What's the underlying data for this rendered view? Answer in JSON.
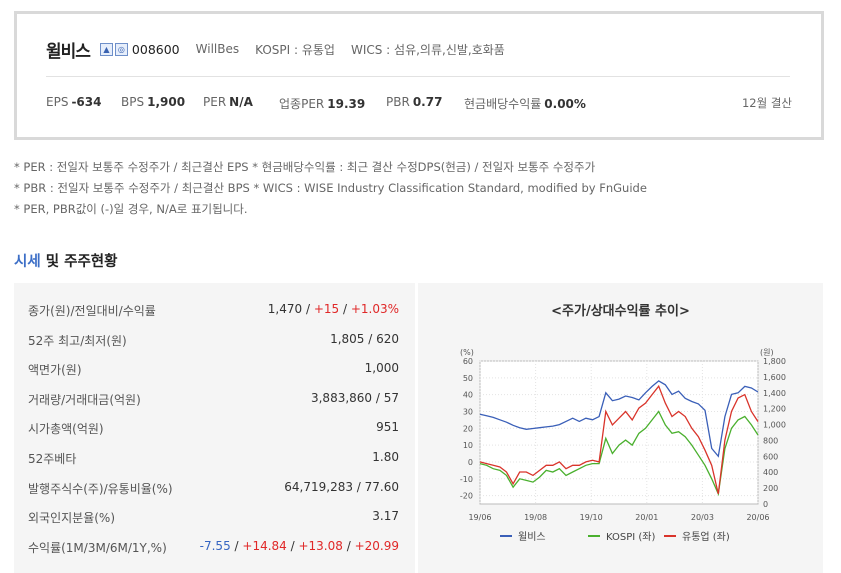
{
  "summary": {
    "company_name": "윌비스",
    "badge_1": "▲",
    "badge_2": "◎",
    "code": "008600",
    "english_name": "WillBes",
    "market": "KOSPI : 유통업",
    "wics": "WICS : 섬유,의류,신발,호화품",
    "metrics": [
      {
        "label": "EPS",
        "value": "-634"
      },
      {
        "label": "BPS",
        "value": "1,900"
      },
      {
        "label": "PER",
        "value": "N/A"
      },
      {
        "label": "업종PER",
        "value": "19.39"
      },
      {
        "label": "PBR",
        "value": "0.77"
      },
      {
        "label": "현금배당수익률",
        "value": "0.00%"
      }
    ],
    "fiscal": "12월 결산"
  },
  "notes": [
    "* PER : 전일자 보통주 수정주가 / 최근결산 EPS * 현금배당수익률 : 최근 결산 수정DPS(현금) / 전일자 보통주 수정주가",
    "* PBR : 전일자 보통주 수정주가 / 최근결산 BPS * WICS : WISE Industry Classification Standard, modified by FnGuide",
    "* PER, PBR값이 (-)일 경우, N/A로 표기됩니다."
  ],
  "section": {
    "title_accent": "시세",
    "title_rest": " 및 주주현황"
  },
  "table": [
    {
      "label": "종가(원)/전일대비/수익률",
      "value": "1,470",
      "parts": [
        "+15",
        "+1.03%"
      ],
      "colors": [
        "red",
        "red"
      ]
    },
    {
      "label": "52주 최고/최저(원)",
      "value": "1,805 / 620"
    },
    {
      "label": "액면가(원)",
      "value": "1,000"
    },
    {
      "label": "거래량/거래대금(억원)",
      "value": "3,883,860 / 57"
    },
    {
      "label": "시가총액(억원)",
      "value": "951"
    },
    {
      "label": "52주베타",
      "value": "1.80"
    },
    {
      "label": "발행주식수(주)/유통비율(%)",
      "value": "64,719,283 / 77.60"
    },
    {
      "label": "외국인지분율(%)",
      "value": "3.17"
    },
    {
      "label": "수익률(1M/3M/6M/1Y,%)",
      "value": "-7.55",
      "parts": [
        "+14.84",
        "+13.08",
        "+20.99"
      ],
      "colors": [
        "red",
        "red",
        "red"
      ],
      "first_color": "blue"
    }
  ],
  "chart_data": {
    "type": "line",
    "title": "<주가/상대수익률 추이>",
    "y_left_unit": "(%)",
    "y_right_unit": "(원)",
    "y_left_ticks": [
      60,
      50,
      40,
      30,
      20,
      10,
      0,
      -10,
      -20
    ],
    "y_right_ticks": [
      "1,800",
      "1,600",
      "1,400",
      "1,200",
      "1,000",
      "800",
      "600",
      "400",
      "200",
      "0"
    ],
    "ylim_left": [
      -25,
      60
    ],
    "ylim_right": [
      0,
      1800
    ],
    "x_tick_labels": [
      "19/06",
      "19/08",
      "19/10",
      "20/01",
      "20/03",
      "20/06"
    ],
    "grid": true,
    "legend_position": "bottom",
    "colors": {
      "stock": "#3a5fb8",
      "kospi": "#4ab02e",
      "sector": "#d9342b"
    },
    "series": [
      {
        "name": "윌비스",
        "axis": "right",
        "values": [
          1130,
          1110,
          1090,
          1060,
          1030,
          990,
          960,
          940,
          950,
          960,
          970,
          980,
          1000,
          1040,
          1080,
          1040,
          1080,
          1060,
          1100,
          1400,
          1300,
          1320,
          1360,
          1340,
          1310,
          1400,
          1480,
          1550,
          1500,
          1380,
          1420,
          1330,
          1290,
          1260,
          1180,
          700,
          600,
          1100,
          1380,
          1400,
          1480,
          1460,
          1410
        ]
      },
      {
        "name": "KOSPI (좌)",
        "axis": "left",
        "values": [
          -1,
          -2,
          -4,
          -5,
          -8,
          -15,
          -10,
          -11,
          -12,
          -9,
          -5,
          -6,
          -4,
          -8,
          -6,
          -4,
          -2,
          -1,
          -1,
          14,
          5,
          10,
          13,
          10,
          17,
          20,
          25,
          30,
          22,
          17,
          18,
          15,
          10,
          4,
          -2,
          -10,
          -19,
          8,
          20,
          25,
          27,
          22,
          16
        ]
      },
      {
        "name": "유통업 (좌)",
        "axis": "left",
        "values": [
          0,
          -1,
          -2,
          -3,
          -6,
          -13,
          -6,
          -6,
          -8,
          -5,
          -2,
          -2,
          0,
          -4,
          -2,
          -2,
          0,
          1,
          0,
          30,
          22,
          26,
          30,
          25,
          32,
          35,
          40,
          45,
          35,
          27,
          30,
          27,
          20,
          15,
          7,
          -2,
          -19,
          13,
          30,
          38,
          40,
          30,
          24
        ]
      }
    ]
  }
}
